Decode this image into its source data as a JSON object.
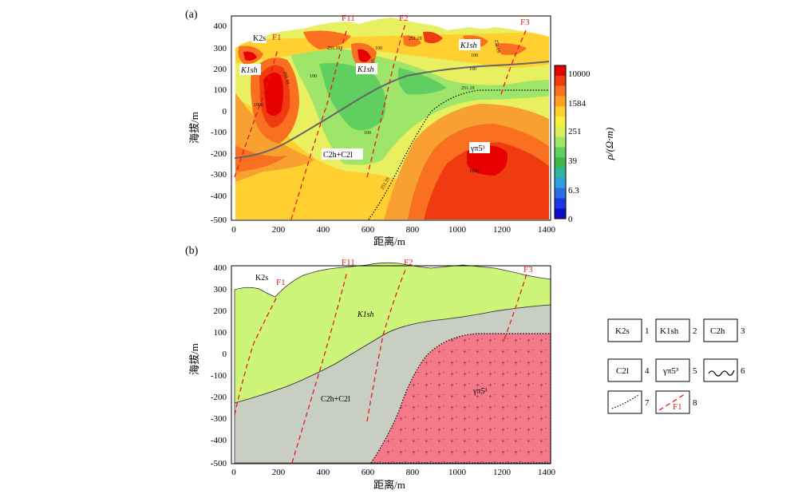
{
  "panel_a": {
    "label": "(a)",
    "ylabel": "海拔/m",
    "xlabel": "距离/m",
    "x_ticks": [
      "0",
      "200",
      "400",
      "600",
      "800",
      "1000",
      "1200",
      "1400"
    ],
    "y_ticks": [
      "400",
      "300",
      "200",
      "100",
      "0",
      "-100",
      "-200",
      "-300",
      "-400",
      "-500"
    ],
    "faults": [
      "F1",
      "F11",
      "F2",
      "F3"
    ],
    "unit_labels": {
      "k2s": "K2s",
      "k1sh_left": "K1sh",
      "k1sh_mid": "K1sh",
      "k1sh_right": "K1sh",
      "c2h_c2l": "C2h+C2l",
      "granite": "γπ5³"
    },
    "contour_labels": [
      "1000",
      "251.19",
      "100",
      "251.19",
      "1000",
      "100",
      "251.19",
      "100",
      "100",
      "251.19",
      "100",
      "251.19",
      "1000",
      "251.19"
    ],
    "colorbar": {
      "title": "ρ/(Ω·m)",
      "ticks": [
        "10000",
        "1584",
        "251",
        "39",
        "6.3",
        "0"
      ],
      "colors": [
        "#e60000",
        "#f03a10",
        "#f87020",
        "#ffa020",
        "#ffd030",
        "#f8f040",
        "#d8f060",
        "#9fe56a",
        "#5fcf5f",
        "#3fb84a",
        "#2fb5a0",
        "#2e9fd8",
        "#2a6fe0",
        "#1a3ae0",
        "#0a10c8"
      ]
    }
  },
  "panel_b": {
    "label": "(b)",
    "ylabel": "海拔/m",
    "xlabel": "距离/m",
    "x_ticks": [
      "0",
      "200",
      "400",
      "600",
      "800",
      "1000",
      "1200",
      "1400"
    ],
    "y_ticks": [
      "400",
      "300",
      "200",
      "100",
      "0",
      "-100",
      "-200",
      "-300",
      "-400",
      "-500"
    ],
    "faults": [
      "F1",
      "F11",
      "F2",
      "F3"
    ],
    "unit_labels": {
      "k2s": "K2s",
      "k1sh": "K1sh",
      "c2h_c2l": "C2h+C2l",
      "granite": "γπ5³"
    },
    "colors": {
      "k1sh": "#ccf57a",
      "c2": "#c9cec3",
      "granite": "#f47a8a",
      "fault": "#e8191a"
    }
  },
  "legend": [
    {
      "num": "1",
      "label": "K2s"
    },
    {
      "num": "2",
      "label": "K1sh"
    },
    {
      "num": "3",
      "label": "C2h"
    },
    {
      "num": "4",
      "label": "C2l"
    },
    {
      "num": "5",
      "label": "γπ5³"
    },
    {
      "num": "6",
      "label": ""
    },
    {
      "num": "7",
      "label": ""
    },
    {
      "num": "8",
      "label": "F1"
    }
  ]
}
